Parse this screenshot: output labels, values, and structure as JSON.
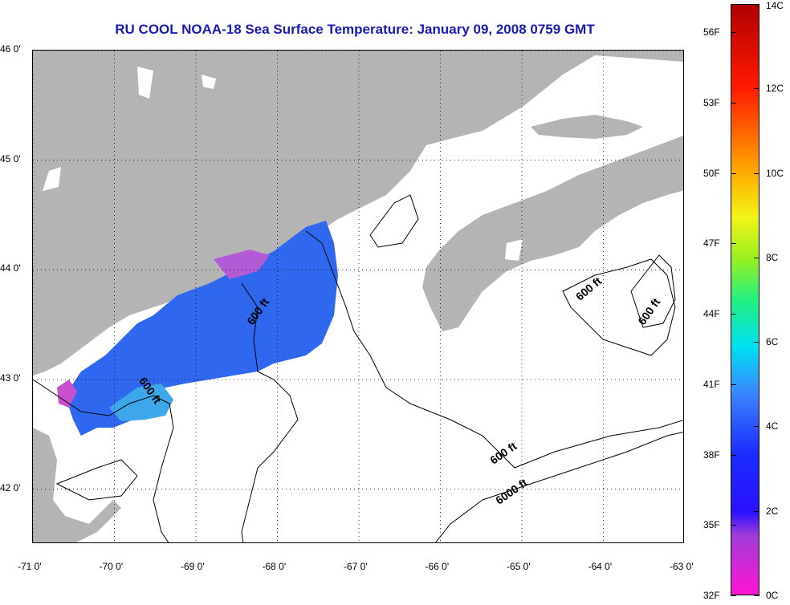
{
  "title": "RU COOL  NOAA-18  Sea Surface Temperature:  January 09, 2008 0759 GMT",
  "map": {
    "lat_range": [
      41.5,
      46.0
    ],
    "lon_range": [
      -71.0,
      -63.0
    ],
    "grid": "dotted",
    "land_color": "#b4b4b4",
    "water_color": "#ffffff"
  },
  "axes": {
    "y_ticks": [
      {
        "value": 46,
        "label": "46 0'"
      },
      {
        "value": 45,
        "label": "45 0'"
      },
      {
        "value": 44,
        "label": "44 0'"
      },
      {
        "value": 43,
        "label": "43 0'"
      },
      {
        "value": 42,
        "label": "42 0'"
      }
    ],
    "x_ticks": [
      {
        "value": -71,
        "label": "-71 0'"
      },
      {
        "value": -70,
        "label": "-70 0'"
      },
      {
        "value": -69,
        "label": "-69 0'"
      },
      {
        "value": -68,
        "label": "-68 0'"
      },
      {
        "value": -67,
        "label": "-67 0'"
      },
      {
        "value": -66,
        "label": "-66 0'"
      },
      {
        "value": -65,
        "label": "-65 0'"
      },
      {
        "value": -64,
        "label": "-64 0'"
      },
      {
        "value": -63,
        "label": "-63 0'"
      }
    ]
  },
  "depth_labels": [
    {
      "text": "600 ft",
      "lon": -68.2,
      "lat": 43.6,
      "angle": -55
    },
    {
      "text": "600 ft",
      "lon": -69.6,
      "lat": 42.88,
      "angle": 55
    },
    {
      "text": "600 ft",
      "lon": -64.15,
      "lat": 43.8,
      "angle": -40
    },
    {
      "text": "600 ft",
      "lon": -63.4,
      "lat": 43.6,
      "angle": -55
    },
    {
      "text": "600 ft",
      "lon": -65.2,
      "lat": 42.3,
      "angle": -35
    },
    {
      "text": "6000 ft",
      "lon": -65.1,
      "lat": 41.95,
      "angle": -35
    }
  ],
  "colorbar": {
    "celsius": [
      {
        "value": 0,
        "label": "0C"
      },
      {
        "value": 2,
        "label": "2C"
      },
      {
        "value": 4,
        "label": "4C"
      },
      {
        "value": 6,
        "label": "6C"
      },
      {
        "value": 8,
        "label": "8C"
      },
      {
        "value": 10,
        "label": "10C"
      },
      {
        "value": 12,
        "label": "12C"
      },
      {
        "value": 14,
        "label": "14C"
      }
    ],
    "fahrenheit": [
      {
        "value": 32,
        "label": "32F"
      },
      {
        "value": 35,
        "label": "35F"
      },
      {
        "value": 38,
        "label": "38F"
      },
      {
        "value": 41,
        "label": "41F"
      },
      {
        "value": 44,
        "label": "44F"
      },
      {
        "value": 47,
        "label": "47F"
      },
      {
        "value": 50,
        "label": "50F"
      },
      {
        "value": 53,
        "label": "53F"
      },
      {
        "value": 56,
        "label": "56F"
      }
    ],
    "range_c": [
      0,
      14
    ]
  }
}
